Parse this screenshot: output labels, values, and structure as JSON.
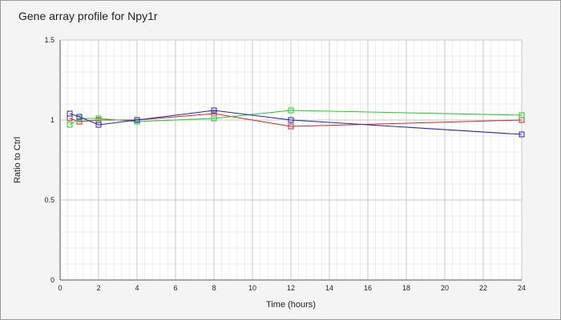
{
  "chart_data": {
    "type": "line",
    "title": "Gene array profile for Npy1r",
    "xlabel": "Time (hours)",
    "ylabel": "Ratio to Ctrl",
    "xlim": [
      0,
      24
    ],
    "ylim": [
      0,
      1.5
    ],
    "x_ticks": [
      0,
      2,
      4,
      6,
      8,
      10,
      12,
      14,
      16,
      18,
      20,
      22,
      24
    ],
    "y_ticks": [
      0,
      0.5,
      1,
      1.5
    ],
    "x_tick_labels": [
      "0",
      "2",
      "4",
      "6",
      "8",
      "10",
      "12",
      "14",
      "16",
      "18",
      "20",
      "22",
      "24"
    ],
    "y_tick_labels": [
      "0",
      "0.5",
      "1",
      "1.5"
    ],
    "grid": true,
    "minor_grid": true,
    "legend": "none",
    "x": [
      0.5,
      1,
      2,
      4,
      8,
      12,
      24
    ],
    "series": [
      {
        "color": "#dd2222",
        "values": [
          1.01,
          0.99,
          1.0,
          1.0,
          1.04,
          0.96,
          1.0
        ]
      },
      {
        "color": "#22cc22",
        "values": [
          0.97,
          1.01,
          1.01,
          0.99,
          1.01,
          1.06,
          1.03
        ]
      },
      {
        "color": "#2222bb",
        "values": [
          1.04,
          1.02,
          0.97,
          1.0,
          1.06,
          1.0,
          0.91
        ]
      }
    ]
  }
}
